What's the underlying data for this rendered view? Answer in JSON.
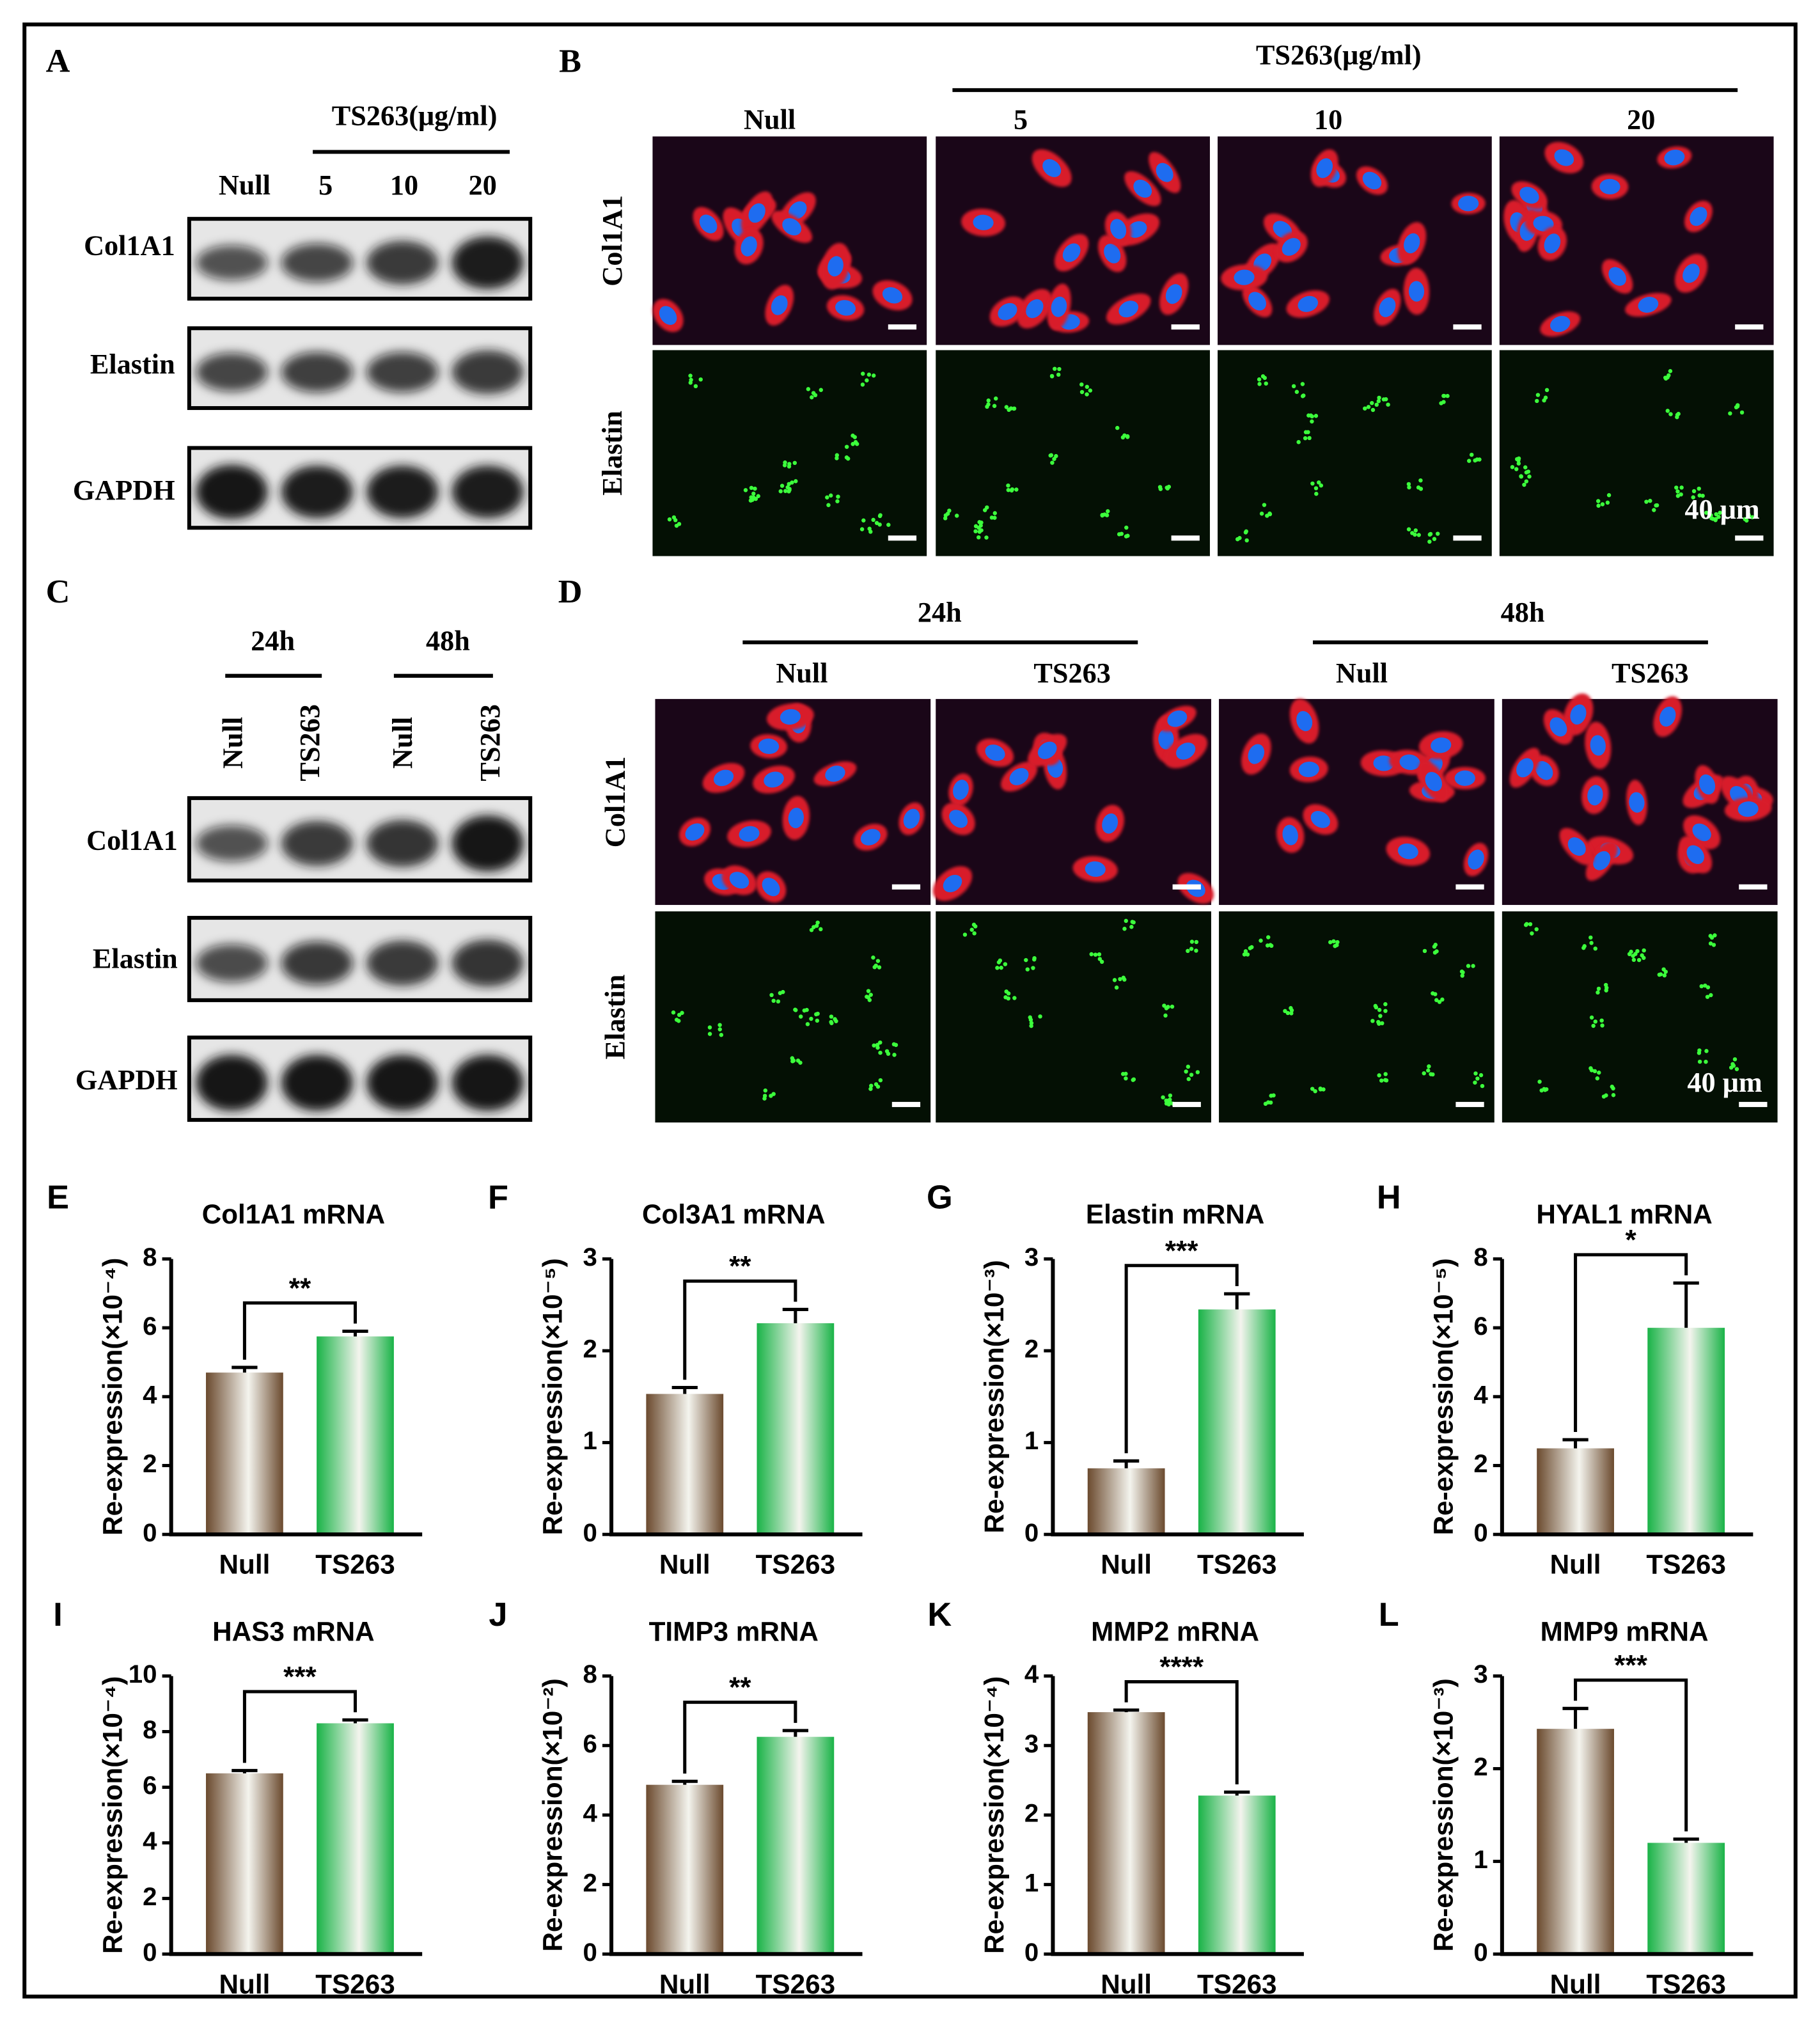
{
  "panels": [
    {
      "label": "A",
      "group_labels": [
        "TS263(μg/ml)"
      ],
      "lane_labels": [
        "Null",
        "5",
        "10",
        "20"
      ],
      "row_labels": [
        "Col1A1",
        "Elastin",
        "GAPDH"
      ]
    },
    {
      "label": "B",
      "group_labels": [
        "TS263(μg/ml)"
      ],
      "column_labels": [
        "Null",
        "5",
        "10",
        "20"
      ],
      "row_labels": [
        "Col1A1",
        "Elastin"
      ],
      "scale_bar": "40 μm"
    },
    {
      "label": "C",
      "group_labels": [
        "24h",
        "48h"
      ],
      "lane_labels": [
        "Null",
        "TS263",
        "Null",
        "TS263"
      ],
      "row_labels": [
        "Col1A1",
        "Elastin",
        "GAPDH"
      ]
    },
    {
      "label": "D",
      "group_labels": [
        "24h",
        "48h"
      ],
      "column_labels": [
        "Null",
        "TS263",
        "Null",
        "TS263"
      ],
      "row_labels": [
        "Col1A1",
        "Elastin"
      ],
      "scale_bar": "40 μm"
    }
  ],
  "chart_data": [
    {
      "type": "bar",
      "panel": "E",
      "title": "Col1A1 mRNA",
      "y_label": "Re-expression(×10⁻⁴)",
      "categories": [
        "Null",
        "TS263"
      ],
      "values": [
        4.7,
        5.75
      ],
      "errors": [
        0.15,
        0.15
      ],
      "significance": "**",
      "colors": [
        "#6b4a2e",
        "#19b347"
      ],
      "ylim": [
        0,
        8
      ],
      "yticks": [
        0,
        2,
        4,
        6,
        8
      ]
    },
    {
      "type": "bar",
      "panel": "F",
      "title": "Col3A1 mRNA",
      "y_label": "Re-expression(×10⁻⁵)",
      "categories": [
        "Null",
        "TS263"
      ],
      "values": [
        1.53,
        2.3
      ],
      "errors": [
        0.07,
        0.15
      ],
      "significance": "**",
      "colors": [
        "#6b4a2e",
        "#19b347"
      ],
      "ylim": [
        0,
        3
      ],
      "yticks": [
        0,
        1,
        2,
        3
      ]
    },
    {
      "type": "bar",
      "panel": "G",
      "title": "Elastin mRNA",
      "y_label": "Re-expression(×10⁻³)",
      "categories": [
        "Null",
        "TS263"
      ],
      "values": [
        0.72,
        2.45
      ],
      "errors": [
        0.08,
        0.17
      ],
      "significance": "***",
      "colors": [
        "#6b4a2e",
        "#19b347"
      ],
      "ylim": [
        0,
        3
      ],
      "yticks": [
        0,
        1,
        2,
        3
      ]
    },
    {
      "type": "bar",
      "panel": "H",
      "title": "HYAL1 mRNA",
      "y_label": "Re-expression(×10⁻⁵)",
      "categories": [
        "Null",
        "TS263"
      ],
      "values": [
        2.5,
        6.0
      ],
      "errors": [
        0.25,
        1.3
      ],
      "significance": "*",
      "colors": [
        "#6b4a2e",
        "#19b347"
      ],
      "ylim": [
        0,
        8
      ],
      "yticks": [
        0,
        2,
        4,
        6,
        8
      ]
    },
    {
      "type": "bar",
      "panel": "I",
      "title": "HAS3 mRNA",
      "y_label": "Re-expression(×10⁻⁴)",
      "categories": [
        "Null",
        "TS263"
      ],
      "values": [
        6.5,
        8.3
      ],
      "errors": [
        0.1,
        0.12
      ],
      "significance": "***",
      "colors": [
        "#6b4a2e",
        "#19b347"
      ],
      "ylim": [
        0,
        10
      ],
      "yticks": [
        0,
        2,
        4,
        6,
        8,
        10
      ]
    },
    {
      "type": "bar",
      "panel": "J",
      "title": "TIMP3 mRNA",
      "y_label": "Re-expression(×10⁻²)",
      "categories": [
        "Null",
        "TS263"
      ],
      "values": [
        4.87,
        6.25
      ],
      "errors": [
        0.1,
        0.18
      ],
      "significance": "**",
      "colors": [
        "#6b4a2e",
        "#19b347"
      ],
      "ylim": [
        0,
        8
      ],
      "yticks": [
        0,
        2,
        4,
        6,
        8
      ]
    },
    {
      "type": "bar",
      "panel": "K",
      "title": "MMP2 mRNA",
      "y_label": "Re-expression(×10⁻⁴)",
      "categories": [
        "Null",
        "TS263"
      ],
      "values": [
        3.48,
        2.28
      ],
      "errors": [
        0.03,
        0.05
      ],
      "significance": "****",
      "colors": [
        "#6b4a2e",
        "#19b347"
      ],
      "ylim": [
        0,
        4
      ],
      "yticks": [
        0,
        1,
        2,
        3,
        4
      ]
    },
    {
      "type": "bar",
      "panel": "L",
      "title": "MMP9 mRNA",
      "y_label": "Re-expression(×10⁻³)",
      "categories": [
        "Null",
        "TS263"
      ],
      "values": [
        2.43,
        1.2
      ],
      "errors": [
        0.22,
        0.04
      ],
      "significance": "***",
      "colors": [
        "#6b4a2e",
        "#19b347"
      ],
      "ylim": [
        0,
        3
      ],
      "yticks": [
        0,
        1,
        2,
        3
      ]
    }
  ]
}
